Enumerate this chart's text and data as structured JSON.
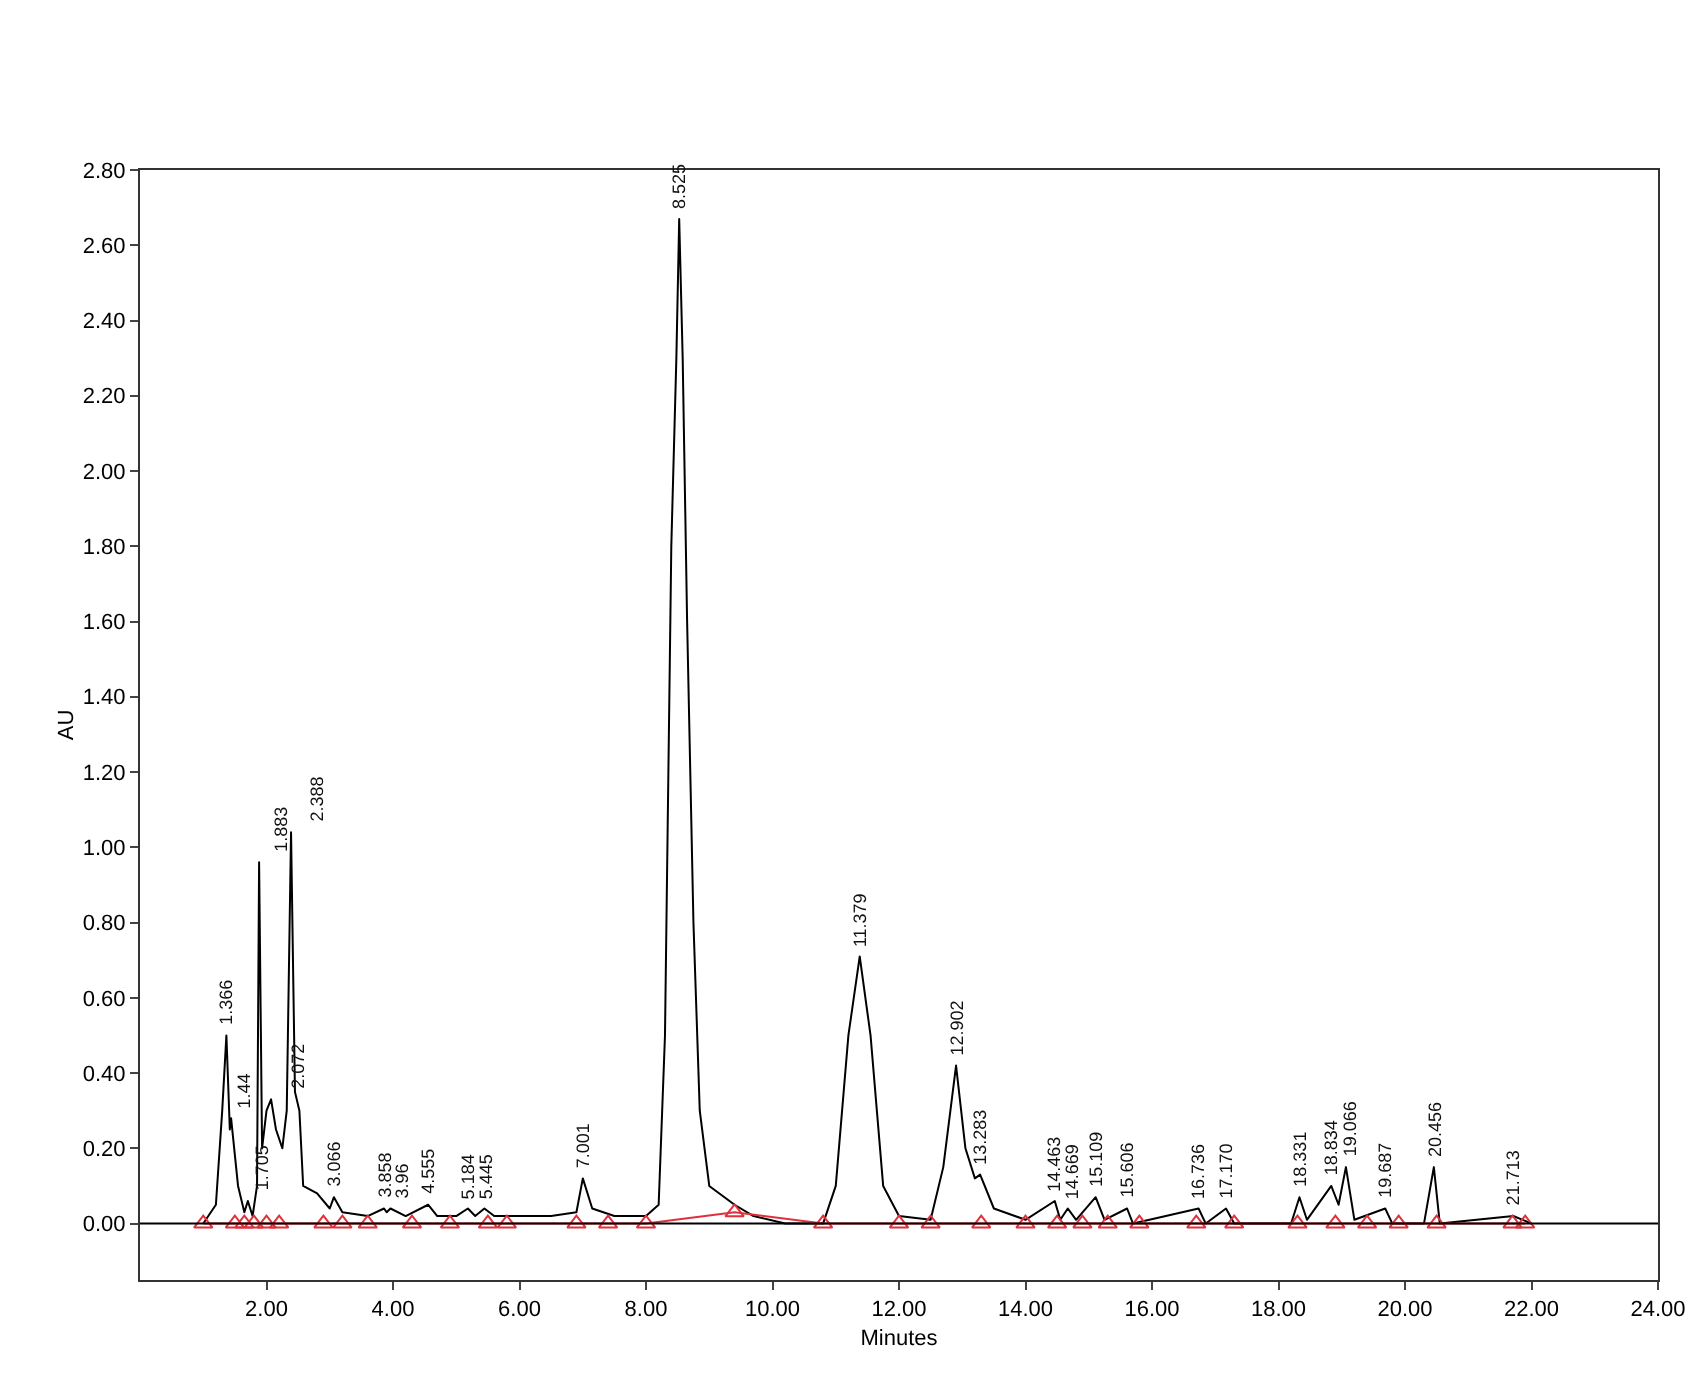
{
  "chart_data": {
    "type": "line",
    "xlabel": "Minutes",
    "ylabel": "AU",
    "xlim": [
      0,
      24
    ],
    "ylim": [
      -0.15,
      2.8
    ],
    "xticks": [
      {
        "value": 2,
        "label": "2.00"
      },
      {
        "value": 4,
        "label": "4.00"
      },
      {
        "value": 6,
        "label": "6.00"
      },
      {
        "value": 8,
        "label": "8.00"
      },
      {
        "value": 10,
        "label": "10.00"
      },
      {
        "value": 12,
        "label": "12.00"
      },
      {
        "value": 14,
        "label": "14.00"
      },
      {
        "value": 16,
        "label": "16.00"
      },
      {
        "value": 18,
        "label": "18.00"
      },
      {
        "value": 20,
        "label": "20.00"
      },
      {
        "value": 22,
        "label": "22.00"
      },
      {
        "value": 24,
        "label": "24.00"
      }
    ],
    "yticks": [
      {
        "value": 0,
        "label": "0.00"
      },
      {
        "value": 0.2,
        "label": "0.20"
      },
      {
        "value": 0.4,
        "label": "0.40"
      },
      {
        "value": 0.6,
        "label": "0.60"
      },
      {
        "value": 0.8,
        "label": "0.80"
      },
      {
        "value": 1,
        "label": "1.00"
      },
      {
        "value": 1.2,
        "label": "1.20"
      },
      {
        "value": 1.4,
        "label": "1.40"
      },
      {
        "value": 1.6,
        "label": "1.60"
      },
      {
        "value": 1.8,
        "label": "1.80"
      },
      {
        "value": 2,
        "label": "2.00"
      },
      {
        "value": 2.2,
        "label": "2.20"
      },
      {
        "value": 2.4,
        "label": "2.40"
      },
      {
        "value": 2.6,
        "label": "2.60"
      },
      {
        "value": 2.8,
        "label": "2.80"
      }
    ],
    "grid": false,
    "line_style": "solid",
    "ref_lines": [
      {
        "axis": "y",
        "value": 0,
        "label": null,
        "color": "#000000"
      }
    ],
    "series": [
      {
        "color": "#000000",
        "marker": "none",
        "x": [
          1.0,
          1.2,
          1.3,
          1.366,
          1.42,
          1.44,
          1.55,
          1.65,
          1.705,
          1.78,
          1.85,
          1.883,
          1.93,
          2.0,
          2.072,
          2.15,
          2.25,
          2.32,
          2.388,
          2.45,
          2.52,
          2.58,
          2.8,
          3.0,
          3.066,
          3.2,
          3.6,
          3.858,
          3.9,
          3.96,
          4.2,
          4.555,
          4.7,
          5.0,
          5.184,
          5.3,
          5.445,
          5.6,
          6.5,
          6.9,
          7.001,
          7.15,
          7.5,
          8.0,
          8.2,
          8.3,
          8.4,
          8.48,
          8.525,
          8.58,
          8.65,
          8.75,
          8.85,
          9.0,
          9.4,
          9.7,
          10.2,
          10.8,
          11.0,
          11.2,
          11.379,
          11.55,
          11.75,
          12.0,
          12.5,
          12.7,
          12.902,
          13.05,
          13.2,
          13.283,
          13.5,
          14.0,
          14.463,
          14.55,
          14.669,
          14.8,
          15.109,
          15.25,
          15.606,
          15.7,
          16.736,
          16.85,
          17.17,
          17.3,
          18.2,
          18.331,
          18.45,
          18.834,
          18.95,
          19.066,
          19.2,
          19.687,
          19.8,
          20.3,
          20.456,
          20.55,
          21.713,
          22.0
        ],
        "values": [
          0.0,
          0.05,
          0.3,
          0.5,
          0.25,
          0.28,
          0.1,
          0.03,
          0.06,
          0.02,
          0.1,
          0.96,
          0.2,
          0.3,
          0.33,
          0.25,
          0.2,
          0.3,
          1.04,
          0.35,
          0.3,
          0.1,
          0.08,
          0.04,
          0.07,
          0.03,
          0.02,
          0.04,
          0.03,
          0.04,
          0.02,
          0.05,
          0.02,
          0.02,
          0.04,
          0.02,
          0.04,
          0.02,
          0.02,
          0.03,
          0.12,
          0.04,
          0.02,
          0.02,
          0.05,
          0.5,
          1.8,
          2.3,
          2.67,
          2.3,
          1.6,
          0.8,
          0.3,
          0.1,
          0.05,
          0.02,
          0.0,
          0.0,
          0.1,
          0.5,
          0.71,
          0.5,
          0.1,
          0.02,
          0.01,
          0.15,
          0.42,
          0.2,
          0.12,
          0.13,
          0.04,
          0.01,
          0.06,
          0.01,
          0.04,
          0.01,
          0.07,
          0.01,
          0.04,
          0.0,
          0.04,
          0.0,
          0.04,
          0.0,
          0.0,
          0.07,
          0.01,
          0.1,
          0.05,
          0.15,
          0.01,
          0.04,
          0.0,
          0.0,
          0.15,
          0.0,
          0.02,
          0.0
        ]
      },
      {
        "color": "#e0303c",
        "marker": "triangle",
        "x": [
          1.0,
          1.5,
          1.65,
          1.8,
          2.0,
          2.2,
          2.9,
          3.2,
          3.6,
          4.3,
          4.9,
          5.5,
          5.8,
          6.9,
          7.4,
          8.0,
          9.4,
          10.8,
          12.0,
          12.5,
          13.3,
          14.0,
          14.5,
          14.9,
          15.3,
          15.8,
          16.7,
          17.3,
          18.3,
          18.9,
          19.4,
          19.9,
          20.5,
          21.7,
          21.9
        ],
        "values": [
          0.0,
          0.0,
          0.0,
          0.0,
          0.0,
          0.0,
          0.0,
          0.0,
          0.0,
          0.0,
          0.0,
          0.0,
          0.0,
          0.0,
          0.0,
          0.0,
          0.03,
          0.0,
          0.0,
          0.0,
          0.0,
          0.0,
          0.0,
          0.0,
          0.0,
          0.0,
          0.0,
          0.0,
          0.0,
          0.0,
          0.0,
          0.0,
          0.0,
          0.0,
          0.0
        ]
      }
    ],
    "annotations": [
      {
        "text": "1.366",
        "x": 1.366,
        "y": 0.5
      },
      {
        "text": "1.44",
        "x": 1.44,
        "y": 0.28
      },
      {
        "text": "1.705",
        "x": 1.705,
        "y": 0.06
      },
      {
        "text": "1.883",
        "x": 1.883,
        "y": 0.96
      },
      {
        "text": "2.072",
        "x": 2.072,
        "y": 0.33
      },
      {
        "text": "2.388",
        "x": 2.388,
        "y": 1.04
      },
      {
        "text": "3.066",
        "x": 3.066,
        "y": 0.07
      },
      {
        "text": "3.858",
        "x": 3.858,
        "y": 0.04
      },
      {
        "text": "3.96",
        "x": 3.96,
        "y": 0.04
      },
      {
        "text": "4.555",
        "x": 4.555,
        "y": 0.05
      },
      {
        "text": "5.184",
        "x": 5.184,
        "y": 0.04
      },
      {
        "text": "5.445",
        "x": 5.445,
        "y": 0.04
      },
      {
        "text": "7.001",
        "x": 7.001,
        "y": 0.12
      },
      {
        "text": "8.525",
        "x": 8.525,
        "y": 2.67
      },
      {
        "text": "11.379",
        "x": 11.379,
        "y": 0.71
      },
      {
        "text": "12.902",
        "x": 12.902,
        "y": 0.42
      },
      {
        "text": "13.283",
        "x": 13.283,
        "y": 0.13
      },
      {
        "text": "14.463",
        "x": 14.463,
        "y": 0.06
      },
      {
        "text": "14.669",
        "x": 14.669,
        "y": 0.04
      },
      {
        "text": "15.109",
        "x": 15.109,
        "y": 0.07
      },
      {
        "text": "15.606",
        "x": 15.606,
        "y": 0.04
      },
      {
        "text": "16.736",
        "x": 16.736,
        "y": 0.04
      },
      {
        "text": "17.170",
        "x": 17.17,
        "y": 0.04
      },
      {
        "text": "18.331",
        "x": 18.331,
        "y": 0.07
      },
      {
        "text": "18.834",
        "x": 18.834,
        "y": 0.1
      },
      {
        "text": "19.066",
        "x": 19.066,
        "y": 0.15
      },
      {
        "text": "19.687",
        "x": 19.687,
        "y": 0.04
      },
      {
        "text": "20.456",
        "x": 20.456,
        "y": 0.15
      },
      {
        "text": "21.713",
        "x": 21.713,
        "y": 0.02
      }
    ]
  }
}
